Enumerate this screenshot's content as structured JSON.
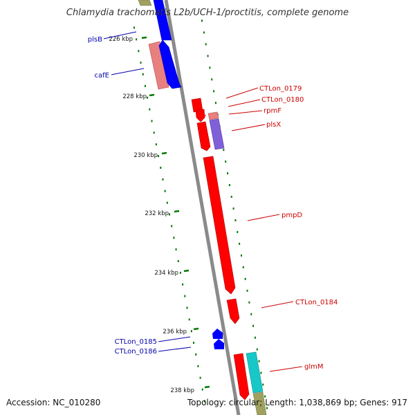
{
  "title": "Chlamydia trachomatis L2b/UCH-1/proctitis, complete genome",
  "footer": {
    "accession": "Accession: NC_010280",
    "summary": "Topology: circular; Length: 1,038,869 bp; Genes: 917"
  },
  "colors": {
    "backbone": "#8a8a8a",
    "forward_strand": "#0000ff",
    "reverse_strand": "#ff0000",
    "tick_dash": "#007700",
    "salmon_feature": "#e88080",
    "purple_feature": "#8060d8",
    "cyan_feature": "#18c8c8",
    "olive_feature": "#a0a060"
  },
  "scale_ticks": [
    {
      "label": "226 kbp",
      "kbp": 226
    },
    {
      "label": "228 kbp",
      "kbp": 228
    },
    {
      "label": "230 kbp",
      "kbp": 230
    },
    {
      "label": "232 kbp",
      "kbp": 232
    },
    {
      "label": "234 kbp",
      "kbp": 234
    },
    {
      "label": "236 kbp",
      "kbp": 236
    },
    {
      "label": "238 kbp",
      "kbp": 238
    }
  ],
  "gene_labels": [
    {
      "name": "plsB",
      "strand": "forward",
      "color": "#0000aa"
    },
    {
      "name": "cafE",
      "strand": "forward",
      "color": "#0000aa"
    },
    {
      "name": "CTLon_0179",
      "strand": "reverse",
      "color": "#cc0000"
    },
    {
      "name": "CTLon_0180",
      "strand": "reverse",
      "color": "#cc0000"
    },
    {
      "name": "rpmF",
      "strand": "reverse",
      "color": "#cc0000"
    },
    {
      "name": "plsX",
      "strand": "reverse",
      "color": "#cc0000"
    },
    {
      "name": "pmpD",
      "strand": "reverse",
      "color": "#cc0000"
    },
    {
      "name": "CTLon_0184",
      "strand": "reverse",
      "color": "#cc0000"
    },
    {
      "name": "CTLon_0185",
      "strand": "forward",
      "color": "#0000aa"
    },
    {
      "name": "CTLon_0186",
      "strand": "forward",
      "color": "#0000aa"
    },
    {
      "name": "glmM",
      "strand": "reverse",
      "color": "#cc0000"
    }
  ]
}
